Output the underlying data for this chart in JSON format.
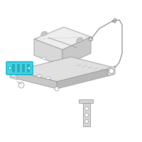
{
  "bg_color": "#f2f2f2",
  "outline_color": "#999999",
  "line_color": "#aaaaaa",
  "highlight_color": "#00b8d4",
  "highlight_fill": "#4dd0e1",
  "highlight_dark": "#0097a7",
  "dark_line": "#888888",
  "tray_fill": "#e0e0e0",
  "battery_fill": "#eeeeee",
  "battery_side": "#d8d8d8",
  "bracket_fill": "#d5d5d5",
  "white_fill": "#ffffff",
  "lw": 0.6
}
